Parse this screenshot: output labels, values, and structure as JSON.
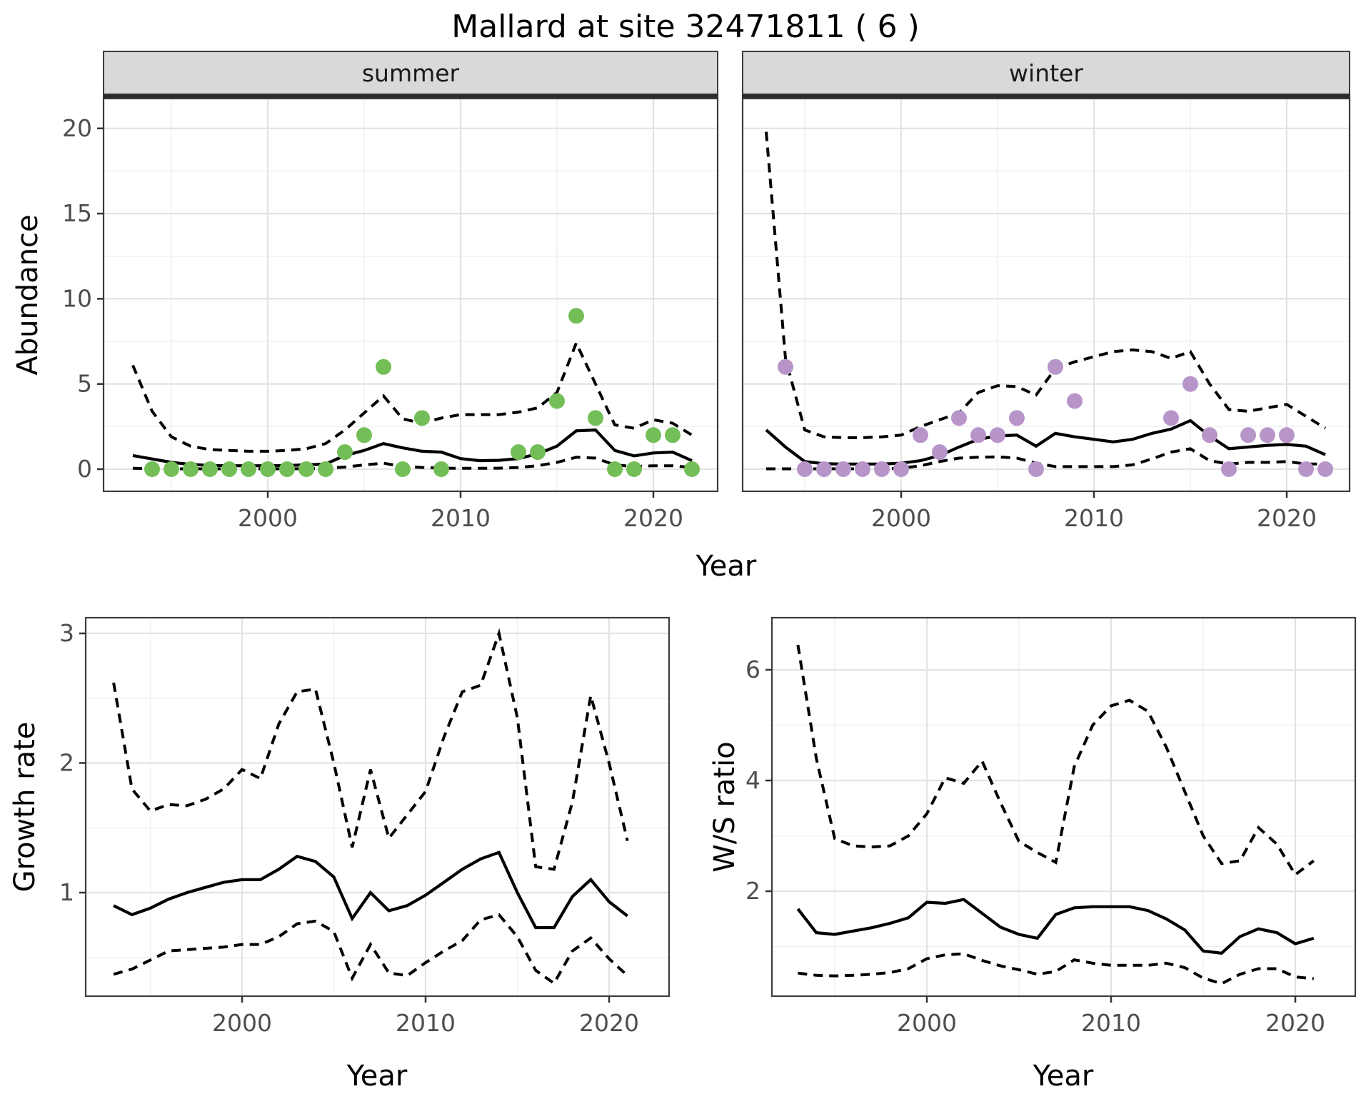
{
  "title": "Mallard at site 32471811 ( 6 )",
  "axis_titles": {
    "x": "Year",
    "y_abundance": "Abundance",
    "y_growth": "Growth rate",
    "y_ws": "W/S ratio"
  },
  "facets": {
    "summer": "summer",
    "winter": "winter"
  },
  "colors": {
    "summer_point": "#73be57",
    "winter_point": "#b795c8",
    "line": "#000000",
    "strip_fill": "#d9d9d9",
    "strip_border": "#3c3c3c",
    "panel_border": "#3c3c3c",
    "grid_major": "#e3e3e3",
    "grid_minor": "#f0f0f0",
    "tick_mark": "#333333",
    "tick_text": "#4d4d4d"
  },
  "chart_data": [
    {
      "id": "abundance-summer",
      "type": "line",
      "facet_label": "summer",
      "title": "Abundance, summer facet: median with dashed credible interval and observed counts",
      "xlabel": "Year",
      "ylabel": "Abundance",
      "xlim": [
        1991.4,
        2023.4
      ],
      "ylim": [
        -1.3,
        21.8
      ],
      "x_ticks": [
        2000,
        2010,
        2020
      ],
      "x_minor": [
        1995,
        2005,
        2015
      ],
      "y_ticks": [
        0,
        5,
        10,
        15,
        20
      ],
      "y_minor": [
        2.5,
        7.5,
        12.5,
        17.5
      ],
      "x_start": 1993,
      "series": [
        {
          "name": "upper-ci",
          "style": "dashed",
          "values": [
            6.1,
            3.4,
            1.9,
            1.35,
            1.15,
            1.1,
            1.05,
            1.05,
            1.1,
            1.2,
            1.5,
            2.3,
            3.3,
            4.3,
            2.95,
            2.7,
            3.0,
            3.2,
            3.2,
            3.2,
            3.35,
            3.6,
            4.5,
            7.4,
            5.0,
            2.6,
            2.4,
            2.9,
            2.7,
            2.0
          ]
        },
        {
          "name": "median",
          "style": "solid",
          "values": [
            0.8,
            0.6,
            0.4,
            0.28,
            0.22,
            0.2,
            0.2,
            0.2,
            0.22,
            0.25,
            0.3,
            0.8,
            1.1,
            1.5,
            1.25,
            1.05,
            1.0,
            0.62,
            0.5,
            0.52,
            0.62,
            0.9,
            1.35,
            2.25,
            2.3,
            1.1,
            0.78,
            0.95,
            1.0,
            0.5
          ]
        },
        {
          "name": "lower-ci",
          "style": "dashed",
          "values": [
            0.05,
            0.03,
            0.02,
            0.02,
            0.02,
            0.02,
            0.02,
            0.02,
            0.02,
            0.03,
            0.05,
            0.12,
            0.25,
            0.35,
            0.15,
            0.1,
            0.06,
            0.05,
            0.05,
            0.06,
            0.1,
            0.2,
            0.4,
            0.7,
            0.65,
            0.25,
            0.15,
            0.2,
            0.2,
            0.1
          ]
        }
      ],
      "points": {
        "color_key": "summer_point",
        "data": [
          [
            1994,
            0
          ],
          [
            1995,
            0
          ],
          [
            1996,
            0
          ],
          [
            1997,
            0
          ],
          [
            1998,
            0
          ],
          [
            1999,
            0
          ],
          [
            2000,
            0
          ],
          [
            2001,
            0
          ],
          [
            2002,
            0
          ],
          [
            2003,
            0
          ],
          [
            2004,
            1
          ],
          [
            2005,
            2
          ],
          [
            2006,
            6
          ],
          [
            2007,
            0
          ],
          [
            2008,
            3
          ],
          [
            2009,
            0
          ],
          [
            2013,
            1
          ],
          [
            2014,
            1
          ],
          [
            2015,
            4
          ],
          [
            2016,
            9
          ],
          [
            2017,
            3
          ],
          [
            2018,
            0
          ],
          [
            2019,
            0
          ],
          [
            2020,
            2
          ],
          [
            2021,
            2
          ],
          [
            2022,
            0
          ]
        ]
      }
    },
    {
      "id": "abundance-winter",
      "type": "line",
      "facet_label": "winter",
      "title": "Abundance, winter facet: median with dashed credible interval and observed counts",
      "xlabel": "Year",
      "ylabel": "Abundance",
      "xlim": [
        1991.8,
        2023.3
      ],
      "ylim": [
        -1.3,
        21.8
      ],
      "x_ticks": [
        2000,
        2010,
        2020
      ],
      "x_minor": [
        1995,
        2005,
        2015
      ],
      "y_ticks": [
        0,
        5,
        10,
        15,
        20
      ],
      "y_minor": [
        2.5,
        7.5,
        12.5,
        17.5
      ],
      "x_start": 1993,
      "series": [
        {
          "name": "upper-ci",
          "style": "dashed",
          "values": [
            19.8,
            6.5,
            2.3,
            1.9,
            1.85,
            1.85,
            1.9,
            2.0,
            2.5,
            2.9,
            3.3,
            4.5,
            4.9,
            4.85,
            4.35,
            5.9,
            6.3,
            6.6,
            6.9,
            7.0,
            6.9,
            6.5,
            6.9,
            5.0,
            3.5,
            3.4,
            3.6,
            3.8,
            3.1,
            2.4
          ]
        },
        {
          "name": "median",
          "style": "solid",
          "values": [
            2.3,
            1.3,
            0.45,
            0.32,
            0.3,
            0.3,
            0.3,
            0.35,
            0.5,
            0.8,
            1.3,
            1.75,
            1.95,
            2.0,
            1.35,
            2.1,
            1.9,
            1.75,
            1.6,
            1.75,
            2.1,
            2.35,
            2.85,
            1.95,
            1.2,
            1.3,
            1.4,
            1.45,
            1.35,
            0.85
          ]
        },
        {
          "name": "lower-ci",
          "style": "dashed",
          "values": [
            0.02,
            0.02,
            0.02,
            0.02,
            0.02,
            0.02,
            0.03,
            0.05,
            0.2,
            0.45,
            0.65,
            0.7,
            0.72,
            0.65,
            0.35,
            0.15,
            0.15,
            0.15,
            0.15,
            0.25,
            0.6,
            1.0,
            1.2,
            0.5,
            0.3,
            0.4,
            0.4,
            0.45,
            0.3,
            0.3
          ]
        }
      ],
      "points": {
        "color_key": "winter_point",
        "data": [
          [
            1994,
            6
          ],
          [
            1995,
            0
          ],
          [
            1996,
            0
          ],
          [
            1997,
            0
          ],
          [
            1998,
            0
          ],
          [
            1999,
            0
          ],
          [
            2000,
            0
          ],
          [
            2001,
            2
          ],
          [
            2002,
            1
          ],
          [
            2003,
            3
          ],
          [
            2004,
            2
          ],
          [
            2005,
            2
          ],
          [
            2006,
            3
          ],
          [
            2007,
            0
          ],
          [
            2008,
            6
          ],
          [
            2009,
            4
          ],
          [
            2014,
            3
          ],
          [
            2015,
            5
          ],
          [
            2016,
            2
          ],
          [
            2017,
            0
          ],
          [
            2018,
            2
          ],
          [
            2019,
            2
          ],
          [
            2020,
            2
          ],
          [
            2021,
            0
          ],
          [
            2022,
            0
          ]
        ]
      }
    },
    {
      "id": "growth-rate",
      "type": "line",
      "facet_label": "",
      "title": "Growth rate: median with dashed credible interval",
      "xlabel": "Year",
      "ylabel": "Growth rate",
      "xlim": [
        1991.5,
        2023.3
      ],
      "ylim": [
        0.2,
        3.12
      ],
      "x_ticks": [
        2000,
        2010,
        2020
      ],
      "x_minor": [
        1995,
        2005,
        2015
      ],
      "y_ticks": [
        1,
        2,
        3
      ],
      "y_minor": [
        0.5,
        1.5,
        2.5
      ],
      "x_start": 1993,
      "series": [
        {
          "name": "upper-ci",
          "style": "dashed",
          "values": [
            2.62,
            1.8,
            1.63,
            1.68,
            1.67,
            1.72,
            1.8,
            1.95,
            1.88,
            2.3,
            2.55,
            2.57,
            2.0,
            1.35,
            1.95,
            1.42,
            1.6,
            1.78,
            2.2,
            2.55,
            2.6,
            3.0,
            2.35,
            1.2,
            1.18,
            1.7,
            2.52,
            2.0,
            1.4
          ]
        },
        {
          "name": "median",
          "style": "solid",
          "values": [
            0.9,
            0.83,
            0.88,
            0.95,
            1.0,
            1.04,
            1.08,
            1.1,
            1.1,
            1.18,
            1.28,
            1.24,
            1.12,
            0.8,
            1.0,
            0.86,
            0.9,
            0.98,
            1.08,
            1.18,
            1.26,
            1.31,
            1.0,
            0.73,
            0.73,
            0.97,
            1.1,
            0.93,
            0.82
          ]
        },
        {
          "name": "lower-ci",
          "style": "dashed",
          "values": [
            0.37,
            0.41,
            0.48,
            0.55,
            0.56,
            0.57,
            0.58,
            0.6,
            0.6,
            0.66,
            0.76,
            0.78,
            0.7,
            0.34,
            0.6,
            0.38,
            0.36,
            0.46,
            0.55,
            0.63,
            0.79,
            0.83,
            0.66,
            0.4,
            0.3,
            0.55,
            0.65,
            0.49,
            0.36
          ]
        }
      ],
      "points": null
    },
    {
      "id": "ws-ratio",
      "type": "line",
      "facet_label": "",
      "title": "Winter/Summer ratio: median with dashed credible interval",
      "xlabel": "Year",
      "ylabel": "W/S ratio",
      "xlim": [
        1991.6,
        2023.2
      ],
      "ylim": [
        0.1,
        6.95
      ],
      "x_ticks": [
        2000,
        2010,
        2020
      ],
      "x_minor": [
        1995,
        2005,
        2015
      ],
      "y_ticks": [
        2,
        4,
        6
      ],
      "y_minor": [
        1,
        3,
        5
      ],
      "x_start": 1993,
      "series": [
        {
          "name": "upper-ci",
          "style": "dashed",
          "values": [
            6.45,
            4.4,
            2.95,
            2.82,
            2.8,
            2.82,
            3.0,
            3.4,
            4.05,
            3.95,
            4.35,
            3.6,
            2.9,
            2.7,
            2.52,
            4.25,
            5.0,
            5.35,
            5.45,
            5.25,
            4.6,
            3.8,
            3.0,
            2.5,
            2.55,
            3.15,
            2.85,
            2.3,
            2.55
          ]
        },
        {
          "name": "median",
          "style": "solid",
          "values": [
            1.68,
            1.25,
            1.22,
            1.28,
            1.34,
            1.42,
            1.52,
            1.8,
            1.78,
            1.85,
            1.6,
            1.35,
            1.22,
            1.15,
            1.58,
            1.7,
            1.72,
            1.72,
            1.72,
            1.65,
            1.5,
            1.3,
            0.92,
            0.88,
            1.18,
            1.32,
            1.25,
            1.05,
            1.15
          ]
        },
        {
          "name": "lower-ci",
          "style": "dashed",
          "values": [
            0.52,
            0.48,
            0.47,
            0.48,
            0.5,
            0.53,
            0.6,
            0.78,
            0.85,
            0.87,
            0.75,
            0.65,
            0.58,
            0.5,
            0.55,
            0.76,
            0.7,
            0.66,
            0.66,
            0.66,
            0.7,
            0.62,
            0.43,
            0.33,
            0.5,
            0.6,
            0.6,
            0.45,
            0.42
          ]
        }
      ],
      "points": null
    }
  ]
}
